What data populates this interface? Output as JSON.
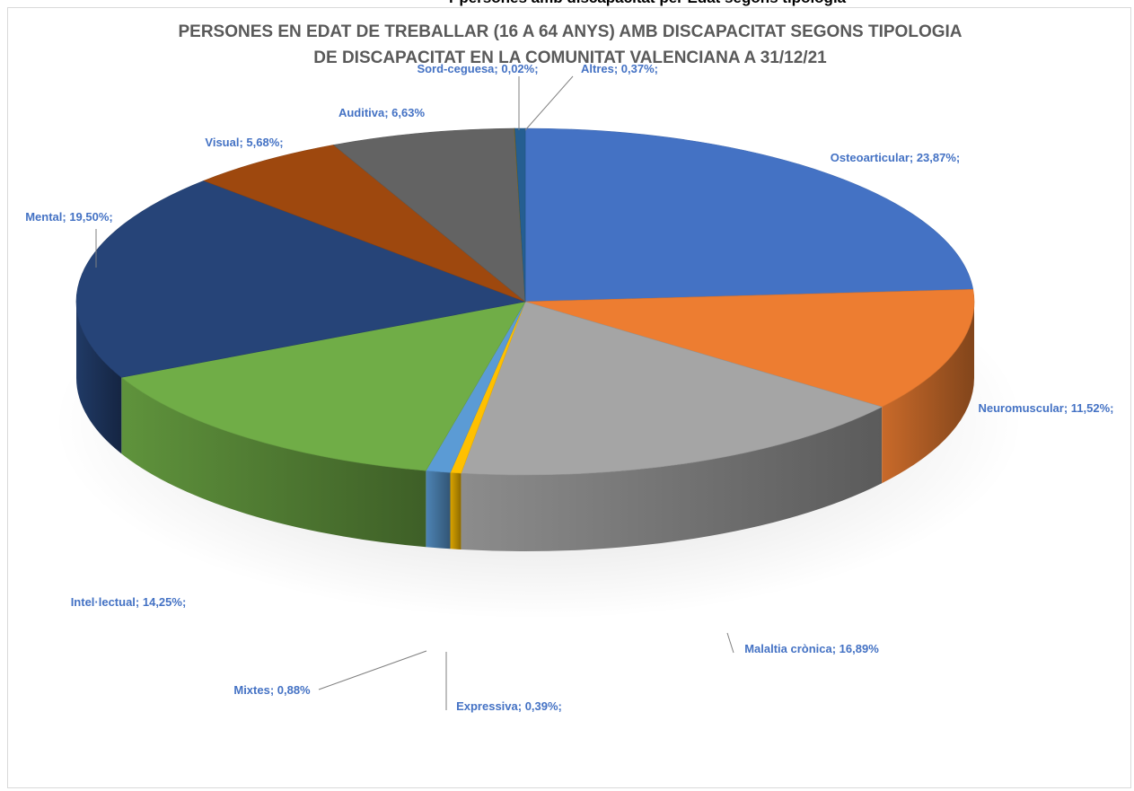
{
  "banner_text": "r persones amb discapacitat per Edat segons tipologia",
  "chart_data": {
    "type": "pie",
    "title_lines": [
      "PERSONES EN EDAT DE TREBALLAR (16 A 64 ANYS) AMB DISCAPACITAT SEGONS TIPOLOGIA",
      "DE DISCAPACITAT EN LA COMUNITAT VALENCIANA A 31/12/21"
    ],
    "slices": [
      {
        "name": "Osteoarticular",
        "value": 23.87,
        "label": "Osteoarticular; 23,87%;",
        "color": "#4472C4"
      },
      {
        "name": "Neuromuscular",
        "value": 11.52,
        "label": "Neuromuscular; 11,52%;",
        "color": "#ED7D31"
      },
      {
        "name": "Malaltia crònica",
        "value": 16.89,
        "label": "Malaltia crònica; 16,89%",
        "color": "#A5A5A5"
      },
      {
        "name": "Expressiva",
        "value": 0.39,
        "label": "Expressiva; 0,39%;",
        "color": "#FFC000"
      },
      {
        "name": "Mixtes",
        "value": 0.88,
        "label": "Mixtes; 0,88%",
        "color": "#5B9BD5"
      },
      {
        "name": "Intel·lectual",
        "value": 14.25,
        "label": "Intel·lectual; 14,25%;",
        "color": "#70AD47"
      },
      {
        "name": "Mental",
        "value": 19.5,
        "label": "Mental; 19,50%;",
        "color": "#264478"
      },
      {
        "name": "Visual",
        "value": 5.68,
        "label": "Visual; 5,68%;",
        "color": "#9E480E"
      },
      {
        "name": "Auditiva",
        "value": 6.63,
        "label": "Auditiva; 6,63%",
        "color": "#636363"
      },
      {
        "name": "Sord-ceguesa",
        "value": 0.02,
        "label": "Sord-ceguesa; 0,02%;",
        "color": "#997300"
      },
      {
        "name": "Altres",
        "value": 0.37,
        "label": "Altres; 0,37%;",
        "color": "#255E91"
      }
    ],
    "label_color": "#4472C4",
    "legend": "none",
    "style": "3d-exploded-pie"
  }
}
